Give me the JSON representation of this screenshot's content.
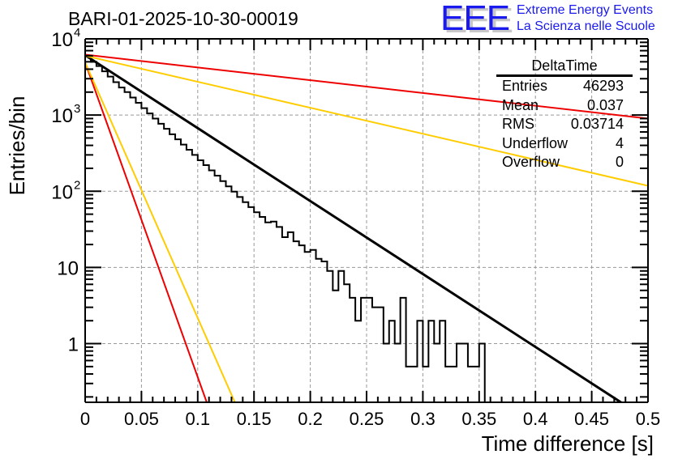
{
  "title": "BARI-01-2025-10-30-00019",
  "logo": {
    "mark": "EEE",
    "line1": "Extreme Energy Events",
    "line2": "La Scienza nelle Scuole",
    "color": "#1a1aee"
  },
  "stats_box": {
    "title": "DeltaTime",
    "rows": [
      {
        "label": "Entries",
        "value": "46293"
      },
      {
        "label": "Mean",
        "value": "0.037"
      },
      {
        "label": "RMS",
        "value": "0.03714"
      },
      {
        "label": "Underflow",
        "value": "4"
      },
      {
        "label": "Overflow",
        "value": "0"
      }
    ]
  },
  "chart_data": {
    "type": "histogram",
    "title": "BARI-01-2025-10-30-00019",
    "xlabel": "Time difference [s]",
    "ylabel": "Entries/bin",
    "xlim": [
      0,
      0.5
    ],
    "ylim": [
      0.17,
      10000
    ],
    "yscale": "log",
    "grid": true,
    "x_ticks": [
      "0",
      "0.05",
      "0.1",
      "0.15",
      "0.2",
      "0.25",
      "0.3",
      "0.35",
      "0.4",
      "0.45",
      "0.5"
    ],
    "x_tick_values": [
      0,
      0.05,
      0.1,
      0.15,
      0.2,
      0.25,
      0.3,
      0.35,
      0.4,
      0.45,
      0.5
    ],
    "y_ticks": [
      {
        "value": 1,
        "label": "1",
        "exp": ""
      },
      {
        "value": 10,
        "label": "10",
        "exp": ""
      },
      {
        "value": 100,
        "label": "10",
        "exp": "2"
      },
      {
        "value": 1000,
        "label": "10",
        "exp": "3"
      },
      {
        "value": 10000,
        "label": "10",
        "exp": "4"
      }
    ],
    "bin_width": 0.005,
    "histogram_values": [
      5900,
      5000,
      4400,
      3750,
      3200,
      2700,
      2300,
      2000,
      1700,
      1450,
      1230,
      1050,
      900,
      770,
      660,
      560,
      480,
      410,
      350,
      300,
      255,
      220,
      188,
      160,
      136,
      116,
      99,
      84,
      72,
      62,
      53,
      46,
      39,
      40,
      34,
      25,
      29,
      22,
      19.5,
      16,
      17,
      13,
      12,
      9,
      5,
      9,
      6,
      4,
      2,
      4,
      4,
      3,
      3,
      1,
      2,
      1,
      4,
      0.5,
      0.5,
      2,
      0.5,
      2,
      1,
      2,
      0.5,
      0.5,
      1,
      1,
      0.5,
      0.5,
      1,
      0,
      0,
      0,
      0,
      0,
      0,
      0,
      0,
      0,
      0,
      0,
      0,
      0,
      0,
      0,
      0,
      0,
      0,
      0,
      0,
      0,
      0,
      0,
      0,
      0,
      0,
      0,
      0,
      0
    ],
    "fit_lines": [
      {
        "name": "fit",
        "color": "#000000",
        "x": [
          0,
          0.5
        ],
        "y": [
          6100,
          0.1
        ]
      },
      {
        "name": "red-slow",
        "color": "#ee0000",
        "x": [
          0,
          0.5
        ],
        "y": [
          6200,
          900
        ]
      },
      {
        "name": "yellow-slow",
        "color": "#ffcc00",
        "x": [
          0,
          0.5
        ],
        "y": [
          6000,
          118
        ]
      },
      {
        "name": "red-fast",
        "color": "#ee0000",
        "x": [
          0,
          0.108
        ],
        "y": [
          4900,
          0.17
        ]
      },
      {
        "name": "yellow-fast",
        "color": "#ffcc00",
        "x": [
          0,
          0.133
        ],
        "y": [
          4900,
          0.17
        ]
      }
    ]
  }
}
